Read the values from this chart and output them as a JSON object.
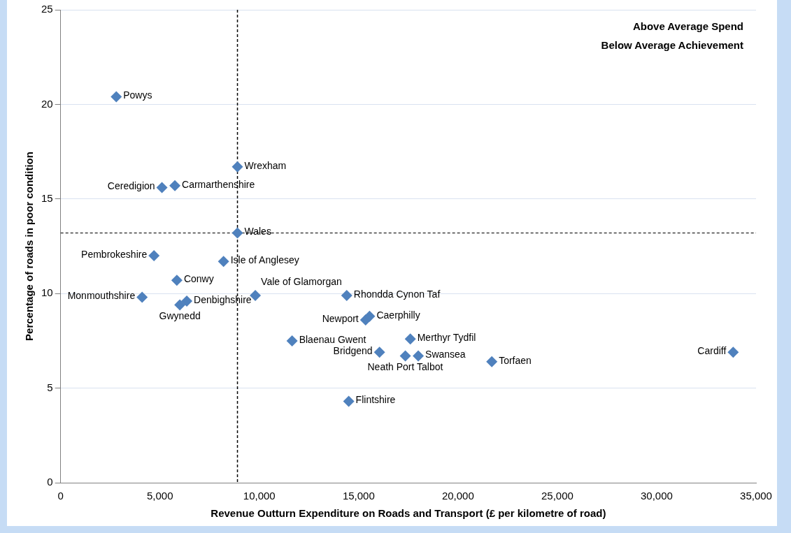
{
  "chart_data": {
    "type": "scatter",
    "xlabel": "Revenue Outturn Expenditure on Roads and Transport (£ per kilometre of road)",
    "ylabel": "Percentage of roads in poor condition",
    "xlim": [
      0,
      35000
    ],
    "xticks": [
      {
        "value": 0,
        "label": "0"
      },
      {
        "value": 5000,
        "label": "5,000"
      },
      {
        "value": 10000,
        "label": "10,000"
      },
      {
        "value": 15000,
        "label": "15,000"
      },
      {
        "value": 20000,
        "label": "20,000"
      },
      {
        "value": 25000,
        "label": "25,000"
      },
      {
        "value": 30000,
        "label": "30,000"
      },
      {
        "value": 35000,
        "label": "35,000"
      }
    ],
    "ylim": [
      0,
      25
    ],
    "yticks": [
      0,
      5,
      10,
      15,
      20,
      25
    ],
    "grid": "y",
    "marker": "diamond",
    "series": [
      {
        "color": "#4f81bd",
        "x": [
          2800,
          8900,
          5100,
          5750,
          8900,
          4700,
          8200,
          5850,
          4100,
          6000,
          6350,
          9800,
          14400,
          15350,
          15550,
          11650,
          16050,
          17350,
          18000,
          17600,
          21700,
          33850,
          14500
        ],
        "values": [
          20.4,
          16.7,
          15.6,
          15.7,
          13.2,
          12.0,
          11.7,
          10.7,
          9.8,
          9.4,
          9.6,
          9.9,
          9.9,
          8.6,
          8.8,
          7.5,
          6.9,
          6.7,
          6.7,
          7.6,
          6.4,
          6.9,
          4.3
        ]
      }
    ],
    "ref_lines": [
      {
        "axis": "x",
        "value": 8900,
        "color": "#000000",
        "line_style": "dashed"
      },
      {
        "axis": "y",
        "value": 13.2,
        "color": "#404040",
        "line_style": "dashed"
      }
    ],
    "annotations": [
      "Above Average Spend",
      "Below Average Achievement",
      {
        "text": "Powys",
        "x": 2800,
        "y": 20.4
      },
      {
        "text": "Wrexham",
        "x": 8900,
        "y": 16.7
      },
      {
        "text": "Ceredigion",
        "x": 5100,
        "y": 15.6
      },
      {
        "text": "Carmarthenshire",
        "x": 5750,
        "y": 15.7
      },
      {
        "text": "Wales",
        "x": 8900,
        "y": 13.2
      },
      {
        "text": "Pembrokeshire",
        "x": 4700,
        "y": 12.0
      },
      {
        "text": "Isle of Anglesey",
        "x": 8200,
        "y": 11.7
      },
      {
        "text": "Conwy",
        "x": 5850,
        "y": 10.7
      },
      {
        "text": "Monmouthshire",
        "x": 4100,
        "y": 9.8
      },
      {
        "text": "Gwynedd",
        "x": 6000,
        "y": 9.4
      },
      {
        "text": "Denbighshire",
        "x": 6350,
        "y": 9.6
      },
      {
        "text": "Vale of Glamorgan",
        "x": 9800,
        "y": 9.9
      },
      {
        "text": "Rhondda Cynon Taf",
        "x": 14400,
        "y": 9.9
      },
      {
        "text": "Newport",
        "x": 15350,
        "y": 8.6
      },
      {
        "text": "Caerphilly",
        "x": 15550,
        "y": 8.8
      },
      {
        "text": "Blaenau Gwent",
        "x": 11650,
        "y": 7.5
      },
      {
        "text": "Bridgend",
        "x": 16050,
        "y": 6.9
      },
      {
        "text": "Neath Port Talbot",
        "x": 17350,
        "y": 6.7
      },
      {
        "text": "Swansea",
        "x": 18000,
        "y": 6.7
      },
      {
        "text": "Merthyr Tydfil",
        "x": 17600,
        "y": 7.6
      },
      {
        "text": "Torfaen",
        "x": 21700,
        "y": 6.4
      },
      {
        "text": "Cardiff",
        "x": 33850,
        "y": 6.9
      },
      {
        "text": "Flintshire",
        "x": 14500,
        "y": 4.3
      }
    ]
  }
}
